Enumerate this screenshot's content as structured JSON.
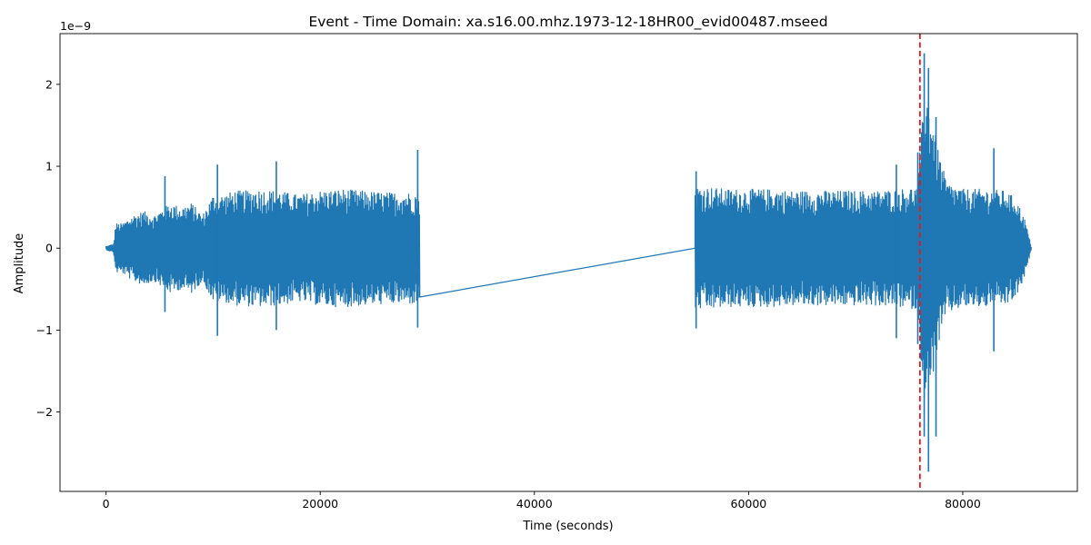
{
  "chart_data": {
    "type": "line",
    "title": "Event - Time Domain: xa.s16.00.mhz.1973-12-18HR00_evid00487.mseed",
    "xlabel": "Time (seconds)",
    "ylabel": "Amplitude",
    "y_offset_text": "1e−9",
    "y_scale_exponent": -9,
    "xlim": [
      -4300,
      90700
    ],
    "ylim": [
      -2.97,
      2.62
    ],
    "x_ticks": [
      0,
      20000,
      40000,
      60000,
      80000
    ],
    "x_tick_labels": [
      "0",
      "20000",
      "40000",
      "60000",
      "80000"
    ],
    "y_ticks": [
      -2,
      -1,
      0,
      1,
      2
    ],
    "y_tick_labels": [
      "−2",
      "−1",
      "0",
      "1",
      "2"
    ],
    "grid": false,
    "series": [
      {
        "color": "#1f77b4",
        "segments": [
          {
            "x_start": 0,
            "x_end": 29300,
            "ramp_in": [
              0,
              700
            ],
            "envelope": [
              [
                0,
                0.02
              ],
              [
                700,
                0.05
              ],
              [
                900,
                0.3
              ],
              [
                1500,
                0.3
              ],
              [
                2500,
                0.4
              ],
              [
                3500,
                0.45
              ],
              [
                4500,
                0.4
              ],
              [
                5500,
                0.5
              ],
              [
                6000,
                0.55
              ],
              [
                7000,
                0.5
              ],
              [
                8000,
                0.55
              ],
              [
                9000,
                0.4
              ],
              [
                10000,
                0.65
              ],
              [
                11000,
                0.65
              ],
              [
                12000,
                0.7
              ],
              [
                13000,
                0.7
              ],
              [
                14000,
                0.72
              ],
              [
                16000,
                0.7
              ],
              [
                18000,
                0.65
              ],
              [
                20000,
                0.7
              ],
              [
                22000,
                0.72
              ],
              [
                24000,
                0.7
              ],
              [
                26000,
                0.68
              ],
              [
                28000,
                0.68
              ],
              [
                29300,
                0.68
              ]
            ]
          },
          {
            "x_start": 29300,
            "x_end": 55000,
            "flat": 0
          },
          {
            "x_start": 55000,
            "x_end": 86400,
            "envelope": [
              [
                55000,
                0.75
              ],
              [
                56000,
                0.75
              ],
              [
                58000,
                0.72
              ],
              [
                60000,
                0.72
              ],
              [
                62000,
                0.72
              ],
              [
                64000,
                0.7
              ],
              [
                66000,
                0.7
              ],
              [
                68000,
                0.7
              ],
              [
                70000,
                0.7
              ],
              [
                72000,
                0.7
              ],
              [
                74000,
                0.72
              ],
              [
                75800,
                0.75
              ],
              [
                76000,
                1.2
              ],
              [
                76500,
                2.0
              ],
              [
                77000,
                1.7
              ],
              [
                77700,
                1.2
              ],
              [
                78500,
                0.8
              ],
              [
                80000,
                0.72
              ],
              [
                82000,
                0.72
              ],
              [
                84000,
                0.7
              ],
              [
                85000,
                0.6
              ],
              [
                85800,
                0.35
              ],
              [
                86400,
                0.02
              ]
            ]
          }
        ],
        "spikes": [
          {
            "x": 5500,
            "ymax": 0.88,
            "ymin": -0.78
          },
          {
            "x": 10400,
            "ymax": 1.02,
            "ymin": -1.07
          },
          {
            "x": 15900,
            "ymax": 1.06,
            "ymin": -1.0
          },
          {
            "x": 29100,
            "ymax": 1.2,
            "ymin": -0.97
          },
          {
            "x": 55100,
            "ymax": 0.94,
            "ymin": -0.98
          },
          {
            "x": 73800,
            "ymax": 1.02,
            "ymin": -1.1
          },
          {
            "x": 75800,
            "ymax": 1.17,
            "ymin": -1.17
          },
          {
            "x": 76400,
            "ymax": 2.38,
            "ymin": -2.3
          },
          {
            "x": 76800,
            "ymax": 2.2,
            "ymin": -2.73
          },
          {
            "x": 77500,
            "ymax": 1.6,
            "ymin": -2.3
          },
          {
            "x": 82900,
            "ymax": 1.22,
            "ymin": -1.26
          }
        ]
      }
    ],
    "annotations": [
      {
        "type": "vline",
        "x": 76000,
        "color": "#e41a1c",
        "style": "dashed"
      }
    ]
  }
}
